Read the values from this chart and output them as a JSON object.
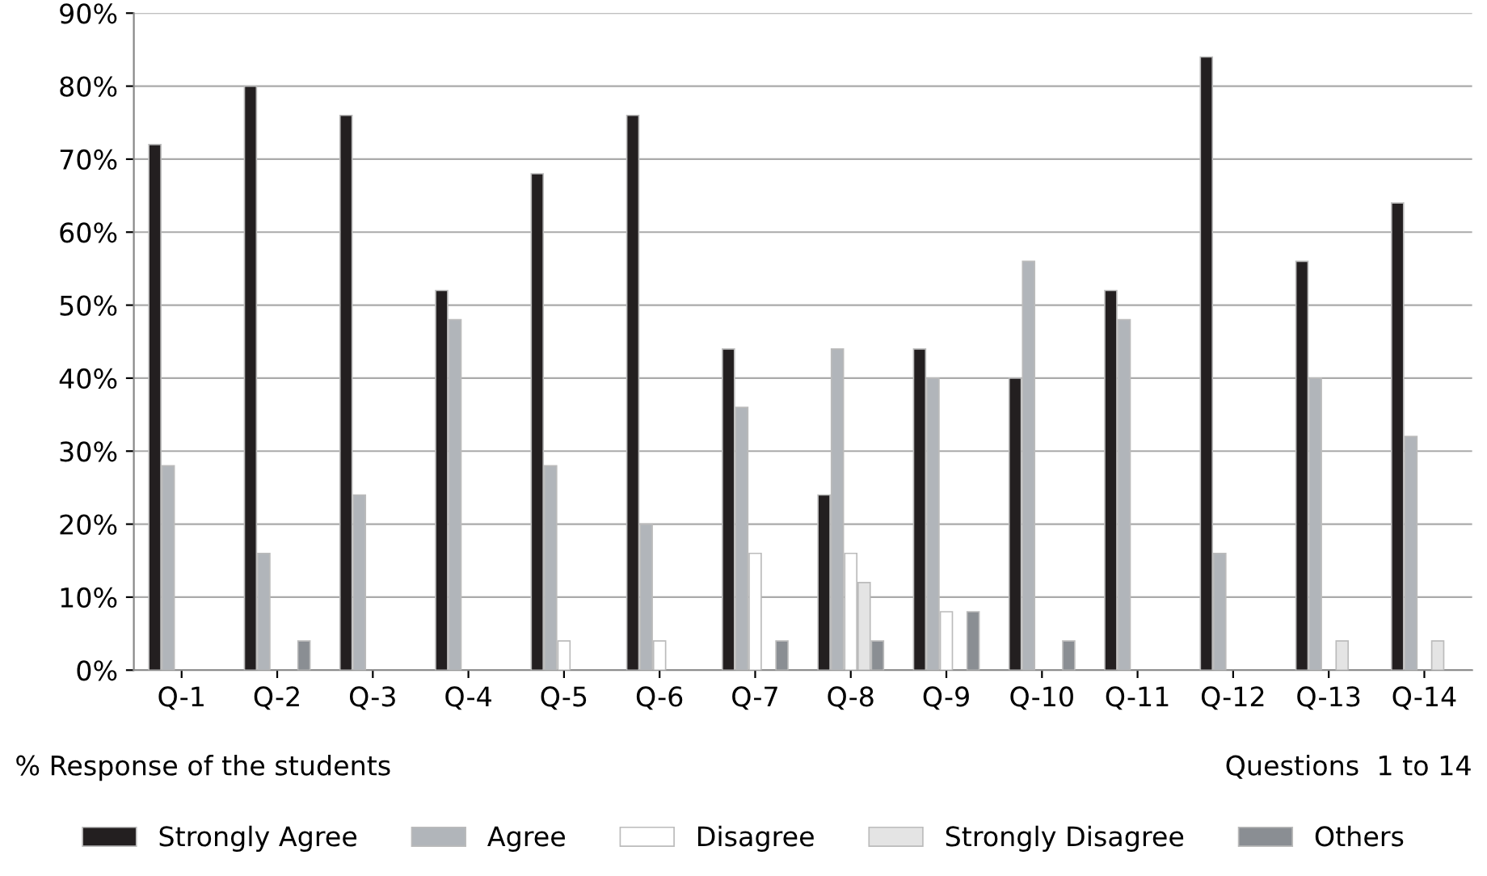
{
  "chart_data": {
    "type": "bar",
    "categories": [
      "Q-1",
      "Q-2",
      "Q-3",
      "Q-4",
      "Q-5",
      "Q-6",
      "Q-7",
      "Q-8",
      "Q-9",
      "Q-10",
      "Q-11",
      "Q-12",
      "Q-13",
      "Q-14"
    ],
    "series": [
      {
        "name": "Strongly Agree",
        "color": "#231f20",
        "values": [
          72,
          80,
          76,
          52,
          68,
          76,
          44,
          24,
          44,
          40,
          52,
          84,
          56,
          64
        ]
      },
      {
        "name": "Agree",
        "color": "#b1b5ba",
        "values": [
          28,
          16,
          24,
          48,
          28,
          20,
          36,
          44,
          40,
          56,
          48,
          16,
          40,
          32
        ]
      },
      {
        "name": "Disagree",
        "color": "#ffffff",
        "values": [
          null,
          null,
          null,
          null,
          4,
          4,
          16,
          16,
          8,
          null,
          null,
          null,
          null,
          null
        ]
      },
      {
        "name": "Strongly Disagree",
        "color": "#e4e4e4",
        "values": [
          null,
          null,
          null,
          null,
          null,
          null,
          null,
          12,
          null,
          null,
          null,
          null,
          4,
          4
        ]
      },
      {
        "name": "Others",
        "color": "#8a8e93",
        "values": [
          null,
          4,
          null,
          null,
          null,
          null,
          4,
          4,
          8,
          4,
          null,
          null,
          null,
          null
        ]
      }
    ],
    "ylim": [
      0,
      90
    ],
    "yticks": [
      {
        "value": 0,
        "label": "0%"
      },
      {
        "value": 10,
        "label": "10%"
      },
      {
        "value": 20,
        "label": "20%"
      },
      {
        "value": 30,
        "label": "30%"
      },
      {
        "value": 40,
        "label": "40%"
      },
      {
        "value": 50,
        "label": "50%"
      },
      {
        "value": 60,
        "label": "60%"
      },
      {
        "value": 70,
        "label": "70%"
      },
      {
        "value": 80,
        "label": "80%"
      },
      {
        "value": 90,
        "label": "90%"
      }
    ],
    "grid": "y",
    "legend": "bottom",
    "annotations": [
      "% Response of the students",
      "Questions  1 to 14"
    ]
  }
}
